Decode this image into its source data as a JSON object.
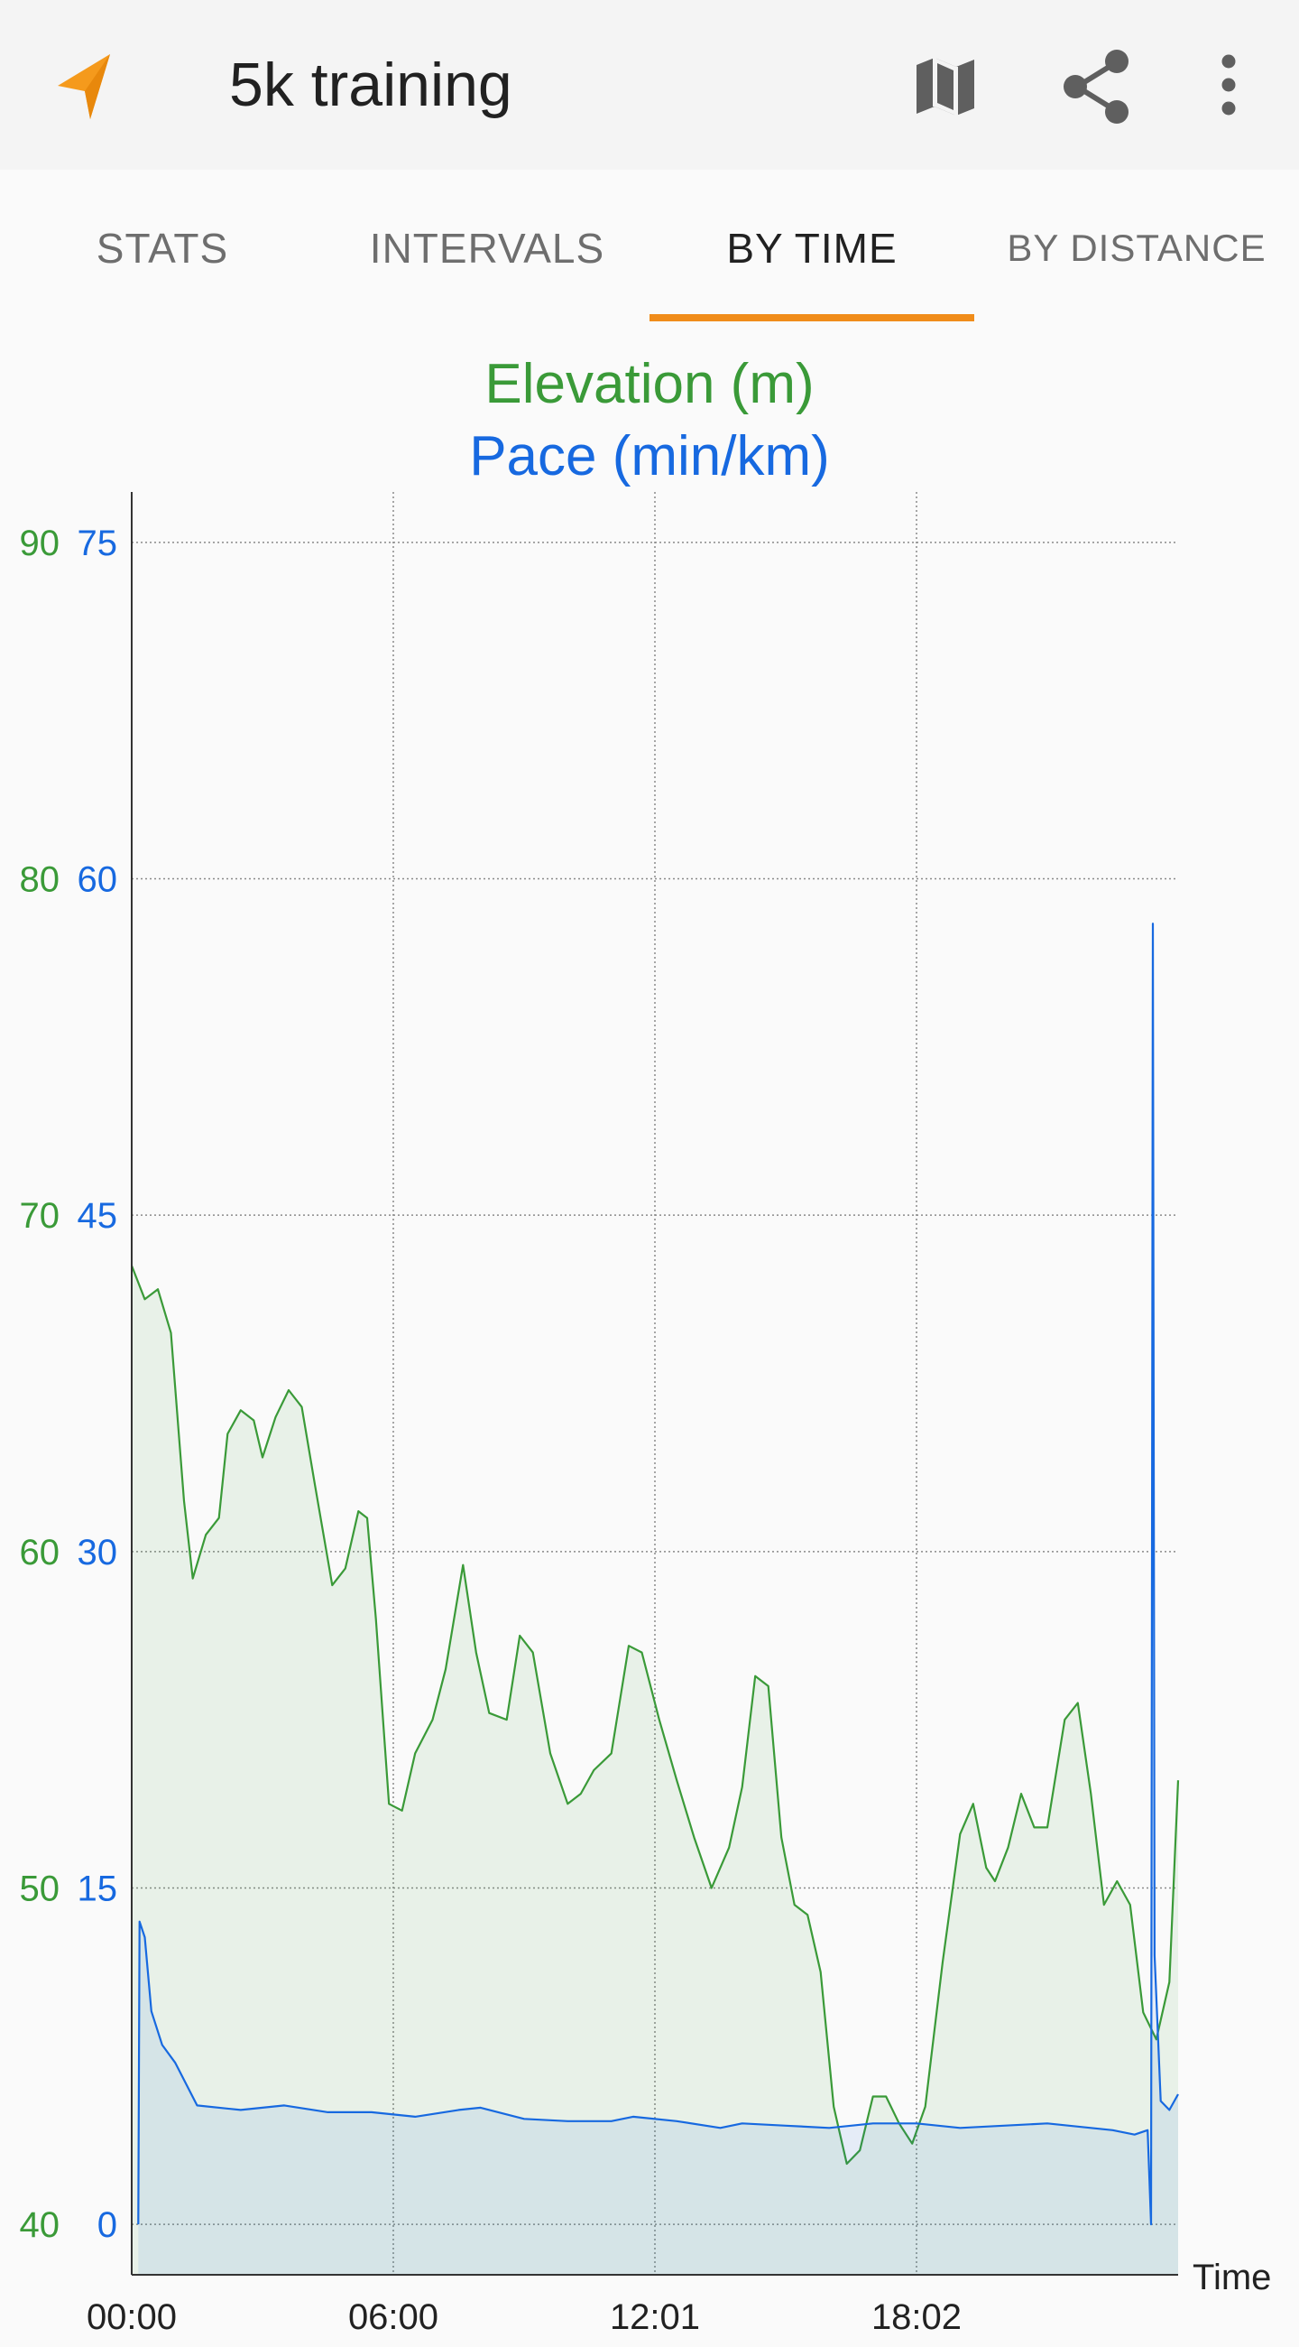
{
  "app": {
    "title": "5k training"
  },
  "toolbar": {
    "navigate_icon": "navigation-arrow-icon",
    "map_icon": "map-icon",
    "share_icon": "share-icon",
    "more_icon": "more-vert-icon"
  },
  "tabs": [
    {
      "label": "STATS",
      "active": false
    },
    {
      "label": "INTERVALS",
      "active": false
    },
    {
      "label": "BY TIME",
      "active": true
    },
    {
      "label": "BY DISTANCE",
      "active": false
    }
  ],
  "colors": {
    "accent": "#f08c1a",
    "elevation": "#3a9a38",
    "pace": "#1769e0"
  },
  "chart_data": {
    "type": "line",
    "titles": [
      "Elevation (m)",
      "Pace (min/km)"
    ],
    "xlabel": "Time",
    "x_ticks": [
      "00:00",
      "06:00",
      "12:01",
      "18:02"
    ],
    "x_range_min": [
      0,
      24
    ],
    "left_axis": {
      "name": "Elevation (m)",
      "ticks": [
        40,
        50,
        60,
        70,
        80,
        90
      ],
      "range": [
        38.5,
        91.5
      ]
    },
    "right_axis": {
      "name": "Pace (min/km)",
      "ticks": [
        0,
        15,
        30,
        45,
        60,
        75
      ],
      "range": [
        -2.25,
        77.25
      ]
    },
    "grid": true,
    "series": [
      {
        "name": "Elevation (m)",
        "axis": "left",
        "fill": true,
        "points": [
          [
            0,
            68.5
          ],
          [
            0.3,
            67.5
          ],
          [
            0.6,
            67.8
          ],
          [
            0.9,
            66.5
          ],
          [
            1.2,
            61.5
          ],
          [
            1.4,
            59.2
          ],
          [
            1.7,
            60.5
          ],
          [
            2.0,
            61.0
          ],
          [
            2.2,
            63.5
          ],
          [
            2.5,
            64.2
          ],
          [
            2.8,
            63.9
          ],
          [
            3.0,
            62.8
          ],
          [
            3.3,
            64.0
          ],
          [
            3.6,
            64.8
          ],
          [
            3.9,
            64.3
          ],
          [
            4.2,
            62.0
          ],
          [
            4.6,
            59.0
          ],
          [
            4.9,
            59.5
          ],
          [
            5.2,
            61.2
          ],
          [
            5.4,
            61.0
          ],
          [
            5.6,
            58.0
          ],
          [
            5.9,
            52.5
          ],
          [
            6.2,
            52.3
          ],
          [
            6.5,
            54.0
          ],
          [
            6.9,
            55.0
          ],
          [
            7.2,
            56.5
          ],
          [
            7.6,
            59.6
          ],
          [
            7.9,
            57.0
          ],
          [
            8.2,
            55.2
          ],
          [
            8.6,
            55.0
          ],
          [
            8.9,
            57.5
          ],
          [
            9.2,
            57.0
          ],
          [
            9.6,
            54.0
          ],
          [
            10.0,
            52.5
          ],
          [
            10.3,
            52.8
          ],
          [
            10.6,
            53.5
          ],
          [
            11.0,
            54.0
          ],
          [
            11.4,
            57.2
          ],
          [
            11.7,
            57.0
          ],
          [
            12.1,
            55.0
          ],
          [
            12.5,
            53.2
          ],
          [
            12.9,
            51.5
          ],
          [
            13.3,
            50.0
          ],
          [
            13.7,
            51.2
          ],
          [
            14.0,
            53.0
          ],
          [
            14.3,
            56.3
          ],
          [
            14.6,
            56.0
          ],
          [
            14.9,
            51.5
          ],
          [
            15.2,
            49.5
          ],
          [
            15.5,
            49.2
          ],
          [
            15.8,
            47.5
          ],
          [
            16.1,
            43.5
          ],
          [
            16.4,
            41.8
          ],
          [
            16.7,
            42.2
          ],
          [
            17.0,
            43.8
          ],
          [
            17.3,
            43.8
          ],
          [
            17.6,
            43.0
          ],
          [
            17.9,
            42.4
          ],
          [
            18.2,
            43.5
          ],
          [
            18.6,
            47.8
          ],
          [
            19.0,
            51.6
          ],
          [
            19.3,
            52.5
          ],
          [
            19.6,
            50.6
          ],
          [
            19.8,
            50.2
          ],
          [
            20.1,
            51.2
          ],
          [
            20.4,
            52.8
          ],
          [
            20.7,
            51.8
          ],
          [
            21.0,
            51.8
          ],
          [
            21.4,
            55.0
          ],
          [
            21.7,
            55.5
          ],
          [
            22.0,
            52.8
          ],
          [
            22.3,
            49.5
          ],
          [
            22.6,
            50.2
          ],
          [
            22.9,
            49.5
          ],
          [
            23.2,
            46.3
          ],
          [
            23.5,
            45.5
          ],
          [
            23.8,
            47.2
          ],
          [
            24.0,
            53.2
          ]
        ]
      },
      {
        "name": "Pace (min/km)",
        "axis": "right",
        "fill": true,
        "points": [
          [
            0.15,
            0
          ],
          [
            0.18,
            13.5
          ],
          [
            0.3,
            12.8
          ],
          [
            0.45,
            9.5
          ],
          [
            0.7,
            8.0
          ],
          [
            1.0,
            7.2
          ],
          [
            1.5,
            5.3
          ],
          [
            2.5,
            5.1
          ],
          [
            3.0,
            5.2
          ],
          [
            3.5,
            5.3
          ],
          [
            4.5,
            5.0
          ],
          [
            5.5,
            5.0
          ],
          [
            6.5,
            4.8
          ],
          [
            7.5,
            5.1
          ],
          [
            8.0,
            5.2
          ],
          [
            9.0,
            4.7
          ],
          [
            10.0,
            4.6
          ],
          [
            11.0,
            4.6
          ],
          [
            11.5,
            4.8
          ],
          [
            12.5,
            4.6
          ],
          [
            13.5,
            4.3
          ],
          [
            14.0,
            4.5
          ],
          [
            15.0,
            4.4
          ],
          [
            16.0,
            4.3
          ],
          [
            17.0,
            4.5
          ],
          [
            18.0,
            4.5
          ],
          [
            19.0,
            4.3
          ],
          [
            20.0,
            4.4
          ],
          [
            21.0,
            4.5
          ],
          [
            22.0,
            4.3
          ],
          [
            22.5,
            4.2
          ],
          [
            23.0,
            4.0
          ],
          [
            23.3,
            4.2
          ],
          [
            23.38,
            0
          ],
          [
            23.42,
            58.0
          ],
          [
            23.46,
            12.0
          ],
          [
            23.6,
            5.5
          ],
          [
            23.8,
            5.1
          ],
          [
            24.0,
            5.8
          ]
        ]
      }
    ]
  }
}
